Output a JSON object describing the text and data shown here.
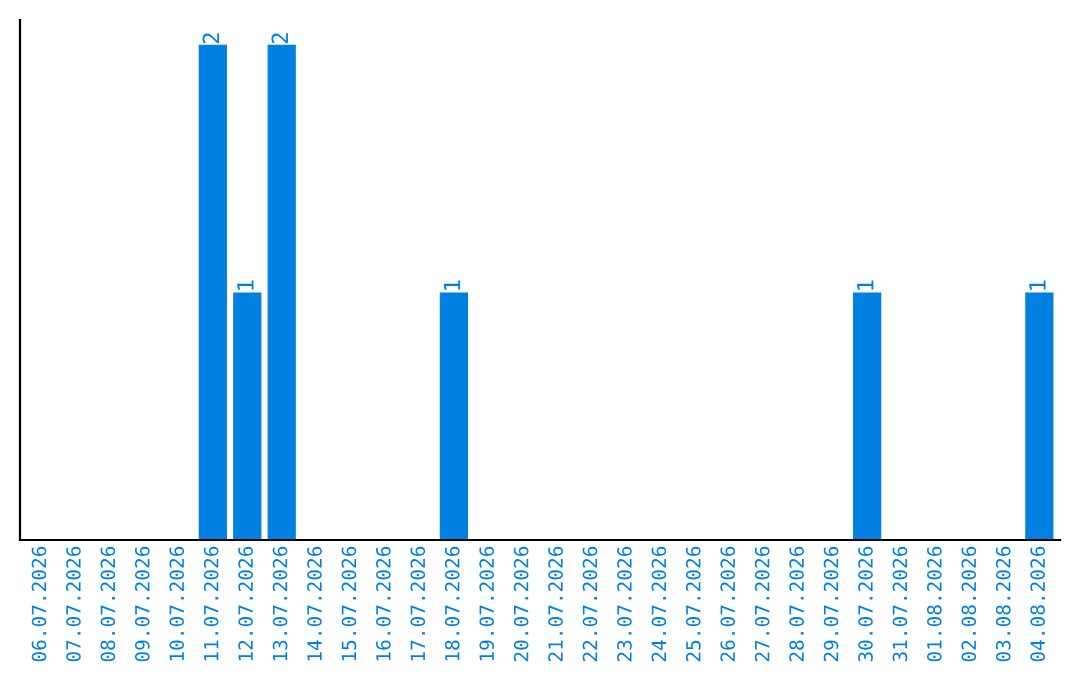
{
  "chart_data": {
    "type": "bar",
    "categories": [
      "06.07.2026",
      "07.07.2026",
      "08.07.2026",
      "09.07.2026",
      "10.07.2026",
      "11.07.2026",
      "12.07.2026",
      "13.07.2026",
      "14.07.2026",
      "15.07.2026",
      "16.07.2026",
      "17.07.2026",
      "18.07.2026",
      "19.07.2026",
      "20.07.2026",
      "21.07.2026",
      "22.07.2026",
      "23.07.2026",
      "24.07.2026",
      "25.07.2026",
      "26.07.2026",
      "27.07.2026",
      "28.07.2026",
      "29.07.2026",
      "30.07.2026",
      "31.07.2026",
      "01.08.2026",
      "02.08.2026",
      "03.08.2026",
      "04.08.2026"
    ],
    "values": [
      0,
      0,
      0,
      0,
      0,
      2,
      1,
      2,
      0,
      0,
      0,
      0,
      1,
      0,
      0,
      0,
      0,
      0,
      0,
      0,
      0,
      0,
      0,
      0,
      1,
      0,
      0,
      0,
      0,
      1
    ],
    "value_labels": [
      null,
      null,
      null,
      null,
      null,
      "2",
      "1",
      "2",
      null,
      null,
      null,
      null,
      "1",
      null,
      null,
      null,
      null,
      null,
      null,
      null,
      null,
      null,
      null,
      null,
      "1",
      null,
      null,
      null,
      null,
      "1"
    ],
    "color": "#0080e0",
    "tick_labels": "x",
    "grid": false,
    "legend": false
  }
}
